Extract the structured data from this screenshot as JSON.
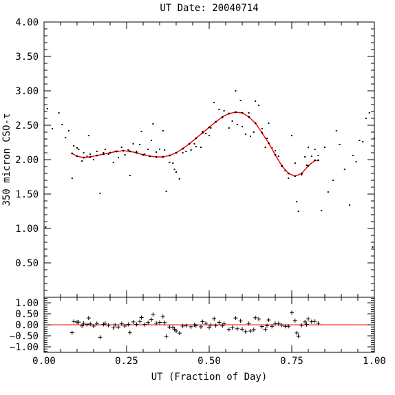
{
  "chart_data": [
    {
      "type": "scatter",
      "title": "UT Date: 20040714",
      "xlabel": "UT (Fraction of Day)",
      "ylabel": "350 micron CSO-τ",
      "xlim": [
        0.0,
        1.0
      ],
      "ylim": [
        0.0,
        4.0
      ],
      "x_ticks": [
        "0.00",
        "0.25",
        "0.50",
        "0.75",
        "1.00"
      ],
      "y_ticks": [
        "0.50",
        "1.00",
        "1.50",
        "2.00",
        "2.50",
        "3.00",
        "3.50",
        "4.00"
      ],
      "colors": {
        "points": "#000000",
        "fit": "#ff0000"
      },
      "series": [
        {
          "kind": "points",
          "x": [
            0.005,
            0.01,
            0.025,
            0.045,
            0.055,
            0.065,
            0.075,
            0.085,
            0.09,
            0.1,
            0.105,
            0.115,
            0.12,
            0.13,
            0.135,
            0.14,
            0.15,
            0.16,
            0.17,
            0.18,
            0.185,
            0.195,
            0.21,
            0.215,
            0.225,
            0.235,
            0.245,
            0.255,
            0.26,
            0.27,
            0.28,
            0.29,
            0.295,
            0.305,
            0.315,
            0.325,
            0.33,
            0.34,
            0.35,
            0.36,
            0.365,
            0.37,
            0.38,
            0.39,
            0.395,
            0.4,
            0.41,
            0.42,
            0.43,
            0.445,
            0.455,
            0.46,
            0.475,
            0.48,
            0.49,
            0.5,
            0.505,
            0.515,
            0.52,
            0.53,
            0.54,
            0.545,
            0.56,
            0.57,
            0.58,
            0.585,
            0.595,
            0.6,
            0.61,
            0.62,
            0.625,
            0.635,
            0.64,
            0.65,
            0.66,
            0.67,
            0.675,
            0.68,
            0.69,
            0.7,
            0.71,
            0.72,
            0.73,
            0.74,
            0.75,
            0.76,
            0.765,
            0.77,
            0.78,
            0.79,
            0.795,
            0.8,
            0.81,
            0.82,
            0.83,
            0.84,
            0.85,
            0.86,
            0.875,
            0.885,
            0.895,
            0.91,
            0.925,
            0.935,
            0.945,
            0.955,
            0.965,
            0.975,
            0.985,
            0.995,
            1.0
          ],
          "y": [
            1.02,
            2.74,
            2.45,
            2.68,
            2.51,
            2.32,
            2.42,
            1.73,
            2.2,
            2.17,
            2.15,
            1.98,
            2.1,
            2.05,
            2.35,
            2.08,
            2.0,
            2.12,
            1.51,
            2.1,
            2.15,
            2.08,
            1.96,
            2.12,
            2.03,
            2.18,
            2.07,
            2.14,
            1.77,
            2.23,
            2.12,
            2.22,
            2.41,
            2.08,
            2.15,
            2.28,
            2.52,
            2.11,
            2.15,
            2.42,
            2.14,
            1.54,
            1.96,
            1.95,
            1.86,
            1.82,
            1.72,
            2.1,
            2.12,
            2.14,
            2.23,
            2.19,
            2.18,
            2.41,
            2.38,
            2.35,
            2.46,
            2.83,
            2.55,
            2.73,
            2.61,
            2.71,
            2.46,
            2.56,
            3.0,
            2.51,
            2.86,
            2.48,
            2.37,
            2.68,
            2.34,
            2.4,
            2.85,
            2.79,
            2.45,
            2.18,
            2.31,
            2.53,
            2.17,
            2.13,
            2.05,
            1.9,
            1.84,
            1.73,
            2.35,
            1.95,
            1.39,
            1.25,
            1.78,
            2.04,
            1.92,
            2.18,
            2.05,
            2.15,
            2.06,
            1.26,
            2.18,
            1.53,
            1.7,
            2.42,
            2.22,
            1.86,
            1.34,
            2.06,
            1.97,
            2.28,
            2.26,
            2.6,
            2.68,
            0.73,
            2.31
          ]
        },
        {
          "kind": "fit",
          "x": [
            0.085,
            0.1,
            0.12,
            0.14,
            0.16,
            0.18,
            0.2,
            0.22,
            0.24,
            0.26,
            0.28,
            0.3,
            0.32,
            0.34,
            0.36,
            0.38,
            0.4,
            0.42,
            0.44,
            0.46,
            0.48,
            0.5,
            0.52,
            0.54,
            0.56,
            0.58,
            0.6,
            0.62,
            0.64,
            0.66,
            0.68,
            0.7,
            0.72,
            0.74,
            0.76,
            0.78,
            0.8,
            0.82,
            0.83
          ],
          "y": [
            2.09,
            2.05,
            2.03,
            2.04,
            2.06,
            2.08,
            2.1,
            2.12,
            2.13,
            2.12,
            2.1,
            2.07,
            2.05,
            2.04,
            2.04,
            2.06,
            2.1,
            2.16,
            2.23,
            2.31,
            2.39,
            2.47,
            2.55,
            2.62,
            2.67,
            2.69,
            2.68,
            2.62,
            2.53,
            2.39,
            2.24,
            2.07,
            1.91,
            1.8,
            1.76,
            1.8,
            1.91,
            1.99,
            1.99
          ]
        }
      ]
    },
    {
      "type": "scatter",
      "xlim": [
        0.0,
        1.0
      ],
      "ylim": [
        -1.25,
        1.25
      ],
      "y_ticks": [
        "1.00",
        "0.50",
        "0.00",
        "−0.50",
        "−1.00"
      ],
      "zero_line_color": "#ff0000",
      "series": [
        {
          "kind": "residuals",
          "x": [
            0.085,
            0.09,
            0.1,
            0.105,
            0.115,
            0.12,
            0.13,
            0.135,
            0.14,
            0.15,
            0.16,
            0.17,
            0.18,
            0.185,
            0.195,
            0.21,
            0.215,
            0.225,
            0.235,
            0.245,
            0.255,
            0.26,
            0.27,
            0.28,
            0.29,
            0.295,
            0.305,
            0.315,
            0.325,
            0.33,
            0.34,
            0.35,
            0.36,
            0.365,
            0.37,
            0.38,
            0.39,
            0.395,
            0.4,
            0.41,
            0.42,
            0.43,
            0.445,
            0.455,
            0.46,
            0.475,
            0.48,
            0.49,
            0.5,
            0.505,
            0.515,
            0.52,
            0.53,
            0.54,
            0.545,
            0.56,
            0.57,
            0.58,
            0.585,
            0.595,
            0.6,
            0.61,
            0.62,
            0.625,
            0.635,
            0.64,
            0.65,
            0.66,
            0.67,
            0.675,
            0.68,
            0.69,
            0.7,
            0.71,
            0.72,
            0.73,
            0.74,
            0.75,
            0.76,
            0.765,
            0.77,
            0.78,
            0.79,
            0.795,
            0.8,
            0.81,
            0.82,
            0.83
          ],
          "y": [
            -0.36,
            0.15,
            0.12,
            0.12,
            -0.05,
            0.07,
            0.01,
            0.31,
            0.04,
            -0.06,
            0.06,
            -0.57,
            0.02,
            0.07,
            -0.02,
            -0.14,
            0.0,
            -0.1,
            0.05,
            -0.06,
            0.02,
            -0.35,
            0.13,
            0.02,
            0.15,
            0.33,
            0.01,
            0.1,
            0.23,
            0.47,
            0.07,
            0.11,
            0.38,
            0.1,
            -0.52,
            -0.1,
            -0.11,
            -0.2,
            -0.28,
            -0.38,
            -0.06,
            -0.04,
            -0.09,
            0.0,
            -0.04,
            -0.09,
            0.14,
            0.07,
            -0.12,
            -0.01,
            0.28,
            -0.04,
            0.11,
            -0.05,
            0.05,
            -0.21,
            -0.13,
            0.31,
            -0.18,
            0.18,
            -0.2,
            -0.31,
            0.06,
            -0.28,
            -0.22,
            0.32,
            0.26,
            -0.08,
            -0.21,
            -0.04,
            0.22,
            -0.07,
            0.06,
            0.05,
            -0.01,
            -0.07,
            -0.07,
            0.55,
            0.19,
            -0.37,
            -0.51,
            -0.02,
            0.13,
            0.01,
            0.27,
            0.14,
            0.16,
            0.07
          ]
        }
      ]
    }
  ]
}
